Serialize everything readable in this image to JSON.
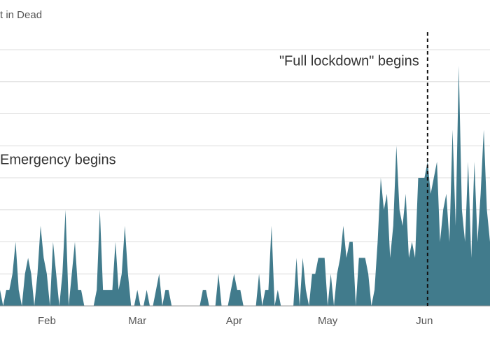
{
  "chart_data": {
    "type": "area",
    "title": "t in Dead",
    "x": [
      0,
      1,
      2,
      3,
      4,
      5,
      6,
      7,
      8,
      9,
      10,
      11,
      12,
      13,
      14,
      15,
      16,
      17,
      18,
      19,
      20,
      21,
      22,
      23,
      24,
      25,
      26,
      27,
      28,
      29,
      30,
      31,
      32,
      33,
      34,
      35,
      36,
      37,
      38,
      39,
      40,
      41,
      42,
      43,
      44,
      45,
      46,
      47,
      48,
      49,
      50,
      51,
      52,
      53,
      54,
      55,
      56,
      57,
      58,
      59,
      60,
      61,
      62,
      63,
      64,
      65,
      66,
      67,
      68,
      69,
      70,
      71,
      72,
      73,
      74,
      75,
      76,
      77,
      78,
      79,
      80,
      81,
      82,
      83,
      84,
      85,
      86,
      87,
      88,
      89,
      90,
      91,
      92,
      93,
      94,
      95,
      96,
      97,
      98,
      99,
      100,
      101,
      102,
      103,
      104,
      105,
      106,
      107,
      108,
      109,
      110,
      111,
      112,
      113,
      114,
      115,
      116,
      117,
      118,
      119,
      120,
      121,
      122,
      123,
      124,
      125,
      126,
      127,
      128,
      129,
      130,
      131,
      132,
      133,
      134,
      135,
      136,
      137,
      138,
      139,
      140,
      141,
      142,
      143,
      144,
      145,
      146,
      147,
      148,
      149,
      150,
      151,
      152,
      153,
      154,
      155,
      156,
      157
    ],
    "values": [
      1,
      0,
      1,
      1,
      2,
      4,
      1,
      0,
      2,
      3,
      2,
      0,
      2,
      5,
      3,
      2,
      0,
      4,
      2,
      0,
      2,
      6,
      0,
      2,
      4,
      1,
      1,
      0,
      0,
      0,
      0,
      1,
      6,
      1,
      1,
      1,
      1,
      4,
      1,
      2,
      5,
      2,
      0,
      0,
      1,
      0,
      0,
      1,
      0,
      0,
      1,
      2,
      0,
      1,
      1,
      0,
      0,
      0,
      0,
      0,
      0,
      0,
      0,
      0,
      0,
      1,
      1,
      0,
      0,
      0,
      2,
      0,
      0,
      0,
      1,
      2,
      1,
      1,
      0,
      0,
      0,
      0,
      0,
      2,
      0,
      1,
      1,
      5,
      0,
      1,
      0,
      0,
      0,
      0,
      0,
      3,
      0,
      3,
      1,
      0,
      2,
      2,
      3,
      3,
      3,
      0,
      2,
      0,
      2,
      3,
      5,
      3,
      4,
      4,
      0,
      3,
      3,
      3,
      2,
      0,
      1,
      4,
      8,
      6,
      7,
      3,
      5,
      10,
      6,
      5,
      7,
      3,
      4,
      3,
      8,
      8,
      8,
      9,
      7,
      8,
      9,
      4,
      6,
      7,
      4,
      11,
      5,
      15,
      6,
      4,
      9,
      3,
      9,
      4,
      7,
      11,
      6,
      4
    ],
    "color": "#417b8c",
    "xlim": [
      0,
      157
    ],
    "xticks": [
      {
        "value": 15,
        "label": "Feb"
      },
      {
        "value": 44,
        "label": "Mar"
      },
      {
        "value": 75,
        "label": "Apr"
      },
      {
        "value": 105,
        "label": "May"
      },
      {
        "value": 136,
        "label": "Jun"
      }
    ],
    "ylim": [
      0,
      16
    ],
    "yticks": [
      0,
      2,
      4,
      6,
      8,
      10,
      12,
      14,
      16
    ],
    "grid": true,
    "annotations": [
      {
        "label": "\"Full lockdown\" begins",
        "x": 137
      },
      {
        "label": "Emergency begins"
      }
    ]
  }
}
